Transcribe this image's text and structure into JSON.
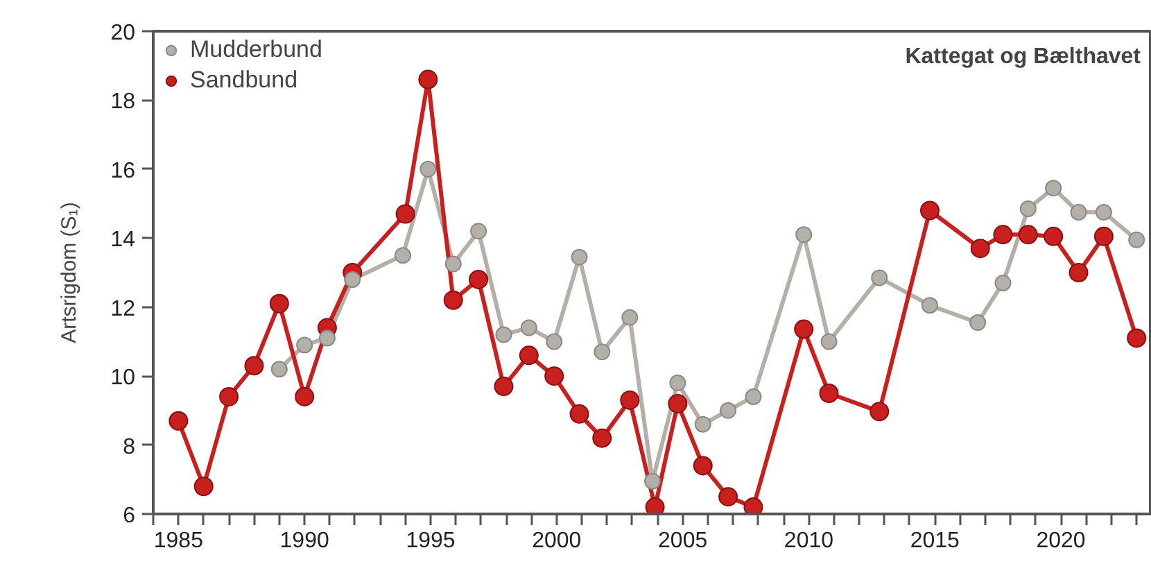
{
  "chart_data": {
    "type": "line",
    "ylabel": "Artsrigdom (S₁)",
    "annotations": [
      "Kattegat og Bælthavet"
    ],
    "xlim": [
      1984,
      2023.6
    ],
    "ylim": [
      6,
      20
    ],
    "yticks": [
      6,
      8,
      10,
      12,
      14,
      16,
      18,
      20
    ],
    "xticks": [
      {
        "value": 1984,
        "label": null
      },
      1985,
      {
        "value": 1986,
        "label": null
      },
      {
        "value": 1987,
        "label": null
      },
      {
        "value": 1988,
        "label": null
      },
      {
        "value": 1989,
        "label": null
      },
      1990,
      {
        "value": 1991,
        "label": null
      },
      {
        "value": 1992,
        "label": null
      },
      {
        "value": 1993,
        "label": null
      },
      {
        "value": 1994,
        "label": null
      },
      1995,
      {
        "value": 1996,
        "label": null
      },
      {
        "value": 1997,
        "label": null
      },
      {
        "value": 1998,
        "label": null
      },
      {
        "value": 1999,
        "label": null
      },
      2000,
      {
        "value": 2001,
        "label": null
      },
      {
        "value": 2002,
        "label": null
      },
      {
        "value": 2003,
        "label": null
      },
      {
        "value": 2004,
        "label": null
      },
      2005,
      {
        "value": 2006,
        "label": null
      },
      {
        "value": 2007,
        "label": null
      },
      {
        "value": 2008,
        "label": null
      },
      {
        "value": 2009,
        "label": null
      },
      2010,
      {
        "value": 2011,
        "label": null
      },
      {
        "value": 2012,
        "label": null
      },
      {
        "value": 2013,
        "label": null
      },
      {
        "value": 2014,
        "label": null
      },
      2015,
      {
        "value": 2016,
        "label": null
      },
      {
        "value": 2017,
        "label": null
      },
      {
        "value": 2018,
        "label": null
      },
      {
        "value": 2019,
        "label": null
      },
      2020,
      {
        "value": 2021,
        "label": null
      },
      {
        "value": 2022,
        "label": null
      },
      {
        "value": 2023,
        "label": null
      }
    ],
    "grid": false,
    "legend": "top left",
    "marker": "circle",
    "line_style": "solid",
    "series": [
      {
        "name": "Mudderbund",
        "color": "#b4b0a8",
        "x": [
          1989.0,
          1990.0,
          1990.9,
          1991.9,
          1993.9,
          1994.9,
          1995.9,
          1996.9,
          1997.9,
          1998.9,
          1999.9,
          2000.9,
          2001.8,
          2002.9,
          2003.8,
          2004.8,
          2005.8,
          2006.8,
          2007.8,
          2009.8,
          2010.8,
          2012.8,
          2014.8,
          2016.7,
          2017.7,
          2018.7,
          2019.7,
          2020.7,
          2021.7,
          2023.0
        ],
        "values": [
          10.2,
          10.9,
          11.1,
          12.8,
          13.5,
          16.0,
          13.25,
          14.2,
          11.2,
          11.4,
          11.0,
          13.45,
          10.7,
          11.7,
          6.95,
          9.8,
          8.6,
          9.0,
          9.4,
          14.1,
          11.0,
          12.85,
          12.05,
          11.55,
          12.7,
          14.85,
          15.45,
          14.75,
          14.75,
          13.95
        ]
      },
      {
        "name": "Sandbund",
        "color": "#c8201e",
        "x": [
          1985.0,
          1986.0,
          1987.0,
          1988.0,
          1989.0,
          1990.0,
          1990.9,
          1991.9,
          1994.0,
          1994.9,
          1995.9,
          1996.9,
          1997.9,
          1998.9,
          1999.9,
          2000.9,
          2001.8,
          2002.9,
          2003.9,
          2004.8,
          2005.8,
          2006.8,
          2007.8,
          2009.8,
          2010.8,
          2012.8,
          2014.8,
          2016.8,
          2017.7,
          2018.7,
          2019.7,
          2020.7,
          2021.7,
          2023.0
        ],
        "values": [
          8.7,
          6.8,
          9.4,
          10.3,
          12.1,
          9.4,
          11.4,
          13.0,
          14.7,
          18.6,
          12.2,
          12.8,
          9.7,
          10.6,
          10.0,
          8.9,
          8.2,
          9.3,
          6.2,
          9.2,
          7.4,
          6.5,
          6.2,
          11.36,
          9.5,
          8.97,
          14.8,
          13.7,
          14.1,
          14.1,
          14.05,
          13.0,
          14.05,
          11.1
        ]
      }
    ]
  }
}
